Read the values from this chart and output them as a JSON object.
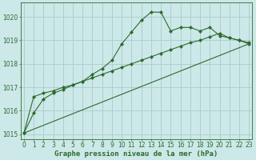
{
  "title": "Graphe pression niveau de la mer (hPa)",
  "background_color": "#cce8e8",
  "grid_color": "#aacccc",
  "line_color": "#2d6a2d",
  "xlim": [
    -0.3,
    23.3
  ],
  "ylim": [
    1014.8,
    1020.6
  ],
  "yticks": [
    1015,
    1016,
    1017,
    1018,
    1019,
    1020
  ],
  "xticks": [
    0,
    1,
    2,
    3,
    4,
    5,
    6,
    7,
    8,
    9,
    10,
    11,
    12,
    13,
    14,
    15,
    16,
    17,
    18,
    19,
    20,
    21,
    22,
    23
  ],
  "series_main_x": [
    0,
    1,
    2,
    3,
    4,
    5,
    6,
    7,
    8,
    9,
    10,
    11,
    12,
    13,
    14,
    15,
    16,
    17,
    18,
    19,
    20,
    21,
    22,
    23
  ],
  "series_main_y": [
    1015.05,
    1015.9,
    1016.5,
    1016.75,
    1016.9,
    1017.1,
    1017.25,
    1017.55,
    1017.8,
    1018.15,
    1018.85,
    1019.35,
    1019.85,
    1020.2,
    1020.2,
    1019.4,
    1019.55,
    1019.55,
    1019.4,
    1019.55,
    1019.2,
    1019.1,
    1019.0,
    1018.9
  ],
  "series_smooth_x": [
    0,
    1,
    2,
    3,
    4,
    5,
    6,
    7,
    8,
    9,
    10,
    11,
    12,
    13,
    14,
    15,
    16,
    17,
    18,
    19,
    20,
    21,
    22,
    23
  ],
  "series_smooth_y": [
    1015.05,
    1016.6,
    1016.75,
    1016.85,
    1017.0,
    1017.1,
    1017.25,
    1017.4,
    1017.55,
    1017.7,
    1017.85,
    1018.0,
    1018.15,
    1018.3,
    1018.45,
    1018.6,
    1018.75,
    1018.9,
    1019.0,
    1019.15,
    1019.3,
    1019.1,
    1019.0,
    1018.85
  ],
  "series_trend_x": [
    0,
    23
  ],
  "series_trend_y": [
    1015.05,
    1018.85
  ],
  "tick_fontsize": 5.5,
  "label_fontsize": 6.5,
  "linewidth": 0.8,
  "markersize": 2.2
}
